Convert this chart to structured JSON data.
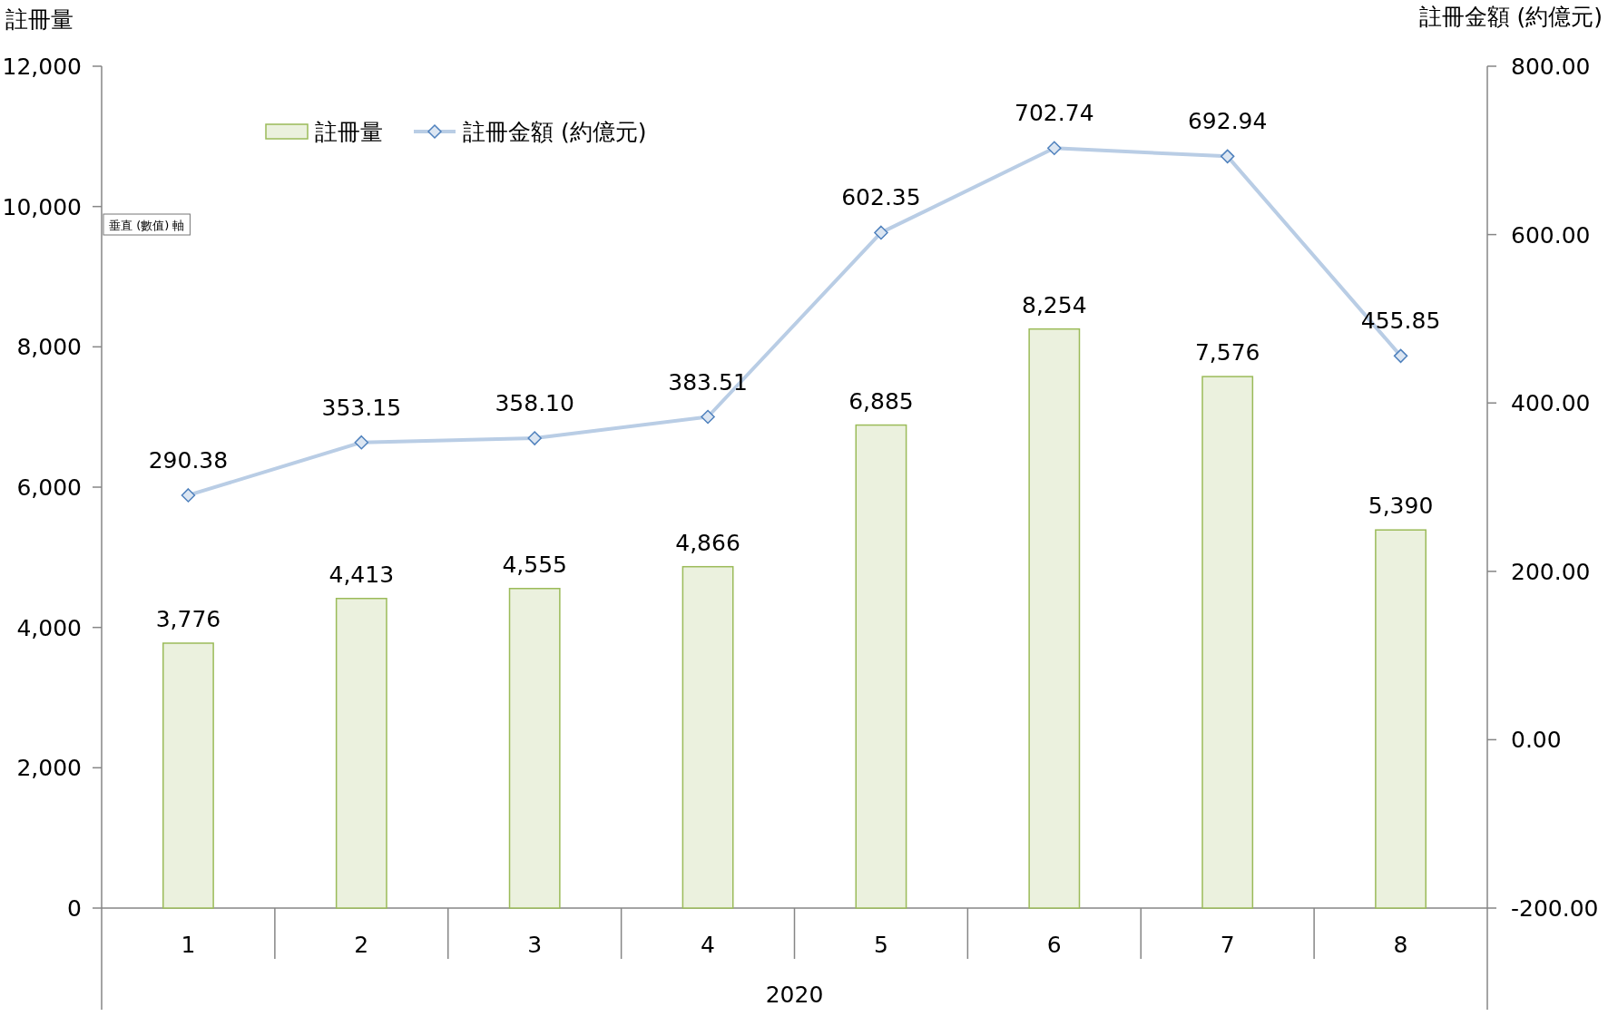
{
  "chart_data": {
    "type": "bar",
    "ylabel": "註冊量",
    "y2label": "註冊金額 (約億元)",
    "xlabel": "2020",
    "categories": [
      "1",
      "2",
      "3",
      "4",
      "5",
      "6",
      "7",
      "8"
    ],
    "series": [
      {
        "name": "註冊量",
        "color": "#ebf1de",
        "values": [
          3776,
          4413,
          4555,
          4866,
          6885,
          8254,
          7576,
          5390
        ],
        "value_labels": [
          "3,776",
          "4,413",
          "4,555",
          "4,866",
          "6,885",
          "8,254",
          "7,576",
          "5,390"
        ]
      },
      {
        "name": "註冊金額 (約億元)",
        "type": "line",
        "axis": "y2",
        "color": "#b9cde5",
        "marker": "diamond",
        "values": [
          290.38,
          353.15,
          358.1,
          383.51,
          602.35,
          702.74,
          692.94,
          455.85
        ],
        "value_labels": [
          "290.38",
          "353.15",
          "358.10",
          "383.51",
          "602.35",
          "702.74",
          "692.94",
          "455.85"
        ]
      }
    ],
    "ylim": [
      0,
      12000
    ],
    "yticks": [
      {
        "value": 0,
        "label": "0"
      },
      {
        "value": 2000,
        "label": "2,000"
      },
      {
        "value": 4000,
        "label": "4,000"
      },
      {
        "value": 6000,
        "label": "6,000"
      },
      {
        "value": 8000,
        "label": "8,000"
      },
      {
        "value": 10000,
        "label": "10,000"
      },
      {
        "value": 12000,
        "label": "12,000"
      }
    ],
    "y2lim": [
      -200,
      800
    ],
    "y2ticks": [
      {
        "value": -200,
        "label": "-200.00"
      },
      {
        "value": 0,
        "label": "0.00"
      },
      {
        "value": 200,
        "label": "200.00"
      },
      {
        "value": 400,
        "label": "400.00"
      },
      {
        "value": 600,
        "label": "600.00"
      },
      {
        "value": 800,
        "label": "800.00"
      }
    ],
    "legend": "top left",
    "annotations": [
      "垂直 (數值) 軸"
    ]
  }
}
